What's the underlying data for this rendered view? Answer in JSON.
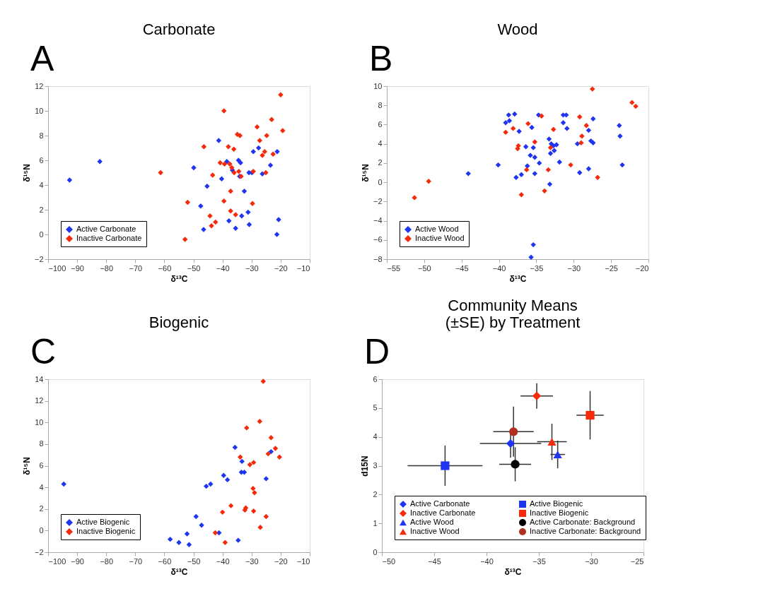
{
  "chart_data": [
    {
      "type": "scatter",
      "title": "Carbonate",
      "xlabel": "δ¹³C",
      "ylabel": "δ¹⁵N",
      "annotations": [
        "A"
      ],
      "marker": "diamond",
      "legend": "bottom left",
      "grid": false,
      "xlim": [
        -100,
        -10
      ],
      "xticks": [
        -100,
        -90,
        -80,
        -70,
        -60,
        -50,
        -40,
        -30,
        -20,
        -10
      ],
      "ylim": [
        -2,
        12
      ],
      "yticks": [
        -2,
        0,
        2,
        4,
        6,
        8,
        10,
        12
      ],
      "series": [
        {
          "name": "Active Carbonate",
          "color": "#1f35f2",
          "x": [
            -92.6,
            -82.2,
            -49.9,
            -45.3,
            -47.5,
            -46.5,
            -41.3,
            -40.3,
            -38.5,
            -36.6,
            -37.8,
            -35.5,
            -34.5,
            -33.8,
            -34.1,
            -33.4,
            -32.5,
            -31.2,
            -30.8,
            -30.9,
            -29.9,
            -29.4,
            -27.6,
            -26.3,
            -23.5,
            -21.2,
            -20.7,
            -21.3
          ],
          "values": [
            4.4,
            5.9,
            5.4,
            3.9,
            2.3,
            0.4,
            7.6,
            4.5,
            5.9,
            5.2,
            1.1,
            0.5,
            6.0,
            5.8,
            4.7,
            1.5,
            3.5,
            1.8,
            0.8,
            5.0,
            5.0,
            6.7,
            7.0,
            4.9,
            5.6,
            6.7,
            1.2,
            0.0
          ]
        },
        {
          "name": "Inactive Carbonate",
          "color": "#f52a0a",
          "x": [
            -61.3,
            -52.9,
            -52.0,
            -46.4,
            -44.3,
            -43.8,
            -42.4,
            -43.4,
            -40.8,
            -39.3,
            -39.5,
            -39.5,
            -38.0,
            -37.5,
            -36.8,
            -37.2,
            -37.2,
            -36.1,
            -36.0,
            -35.5,
            -34.9,
            -34.0,
            -34.4,
            -33.6,
            -29.7,
            -29.4,
            -28.1,
            -27.2,
            -26.3,
            -25.5,
            -25.1,
            -24.8,
            -23.1,
            -22.6,
            -20.0,
            -19.3
          ],
          "values": [
            5.0,
            -0.4,
            2.6,
            7.1,
            1.5,
            0.7,
            1.0,
            4.8,
            5.8,
            5.7,
            10.0,
            2.7,
            7.1,
            5.7,
            5.4,
            3.5,
            1.9,
            6.9,
            5.0,
            1.6,
            8.1,
            8.0,
            5.1,
            4.7,
            2.5,
            5.1,
            8.7,
            7.6,
            6.4,
            6.7,
            5.0,
            8.0,
            9.3,
            6.5,
            11.3,
            8.4
          ]
        }
      ]
    },
    {
      "type": "scatter",
      "title": "Wood",
      "xlabel": "δ¹³C",
      "ylabel": "δ¹⁵N",
      "annotations": [
        "B"
      ],
      "marker": "diamond",
      "legend": "bottom left",
      "grid": false,
      "xlim": [
        -55,
        -20
      ],
      "xticks": [
        -55,
        -50,
        -45,
        -40,
        -35,
        -30,
        -25,
        -20
      ],
      "ylim": [
        -8,
        10
      ],
      "yticks": [
        -8,
        -6,
        -4,
        -2,
        0,
        2,
        4,
        6,
        8,
        10
      ],
      "series": [
        {
          "name": "Active Wood",
          "color": "#1f35f2",
          "x": [
            -44.1,
            -40.1,
            -39.1,
            -38.6,
            -38.7,
            -37.9,
            -37.3,
            -37.7,
            -37.0,
            -36.4,
            -35.6,
            -35.4,
            -35.8,
            -35.2,
            -36.2,
            -35.2,
            -34.6,
            -34.7,
            -35.4,
            -35.7,
            -33.3,
            -33.0,
            -32.7,
            -32.3,
            -32.6,
            -33.1,
            -33.2,
            -31.9,
            -31.4,
            -31.0,
            -31.4,
            -30.9,
            -29.5,
            -29.2,
            -28.0,
            -27.7,
            -27.4,
            -27.4,
            -28.0,
            -23.9,
            -23.8,
            -23.5
          ],
          "values": [
            0.9,
            1.8,
            6.2,
            6.4,
            7.0,
            7.1,
            5.3,
            0.5,
            0.8,
            3.7,
            5.7,
            3.6,
            2.8,
            2.6,
            1.7,
            0.9,
            2.0,
            7.0,
            -6.5,
            -7.8,
            4.5,
            4.0,
            3.8,
            3.9,
            3.3,
            3.0,
            -0.2,
            2.1,
            7.0,
            7.0,
            6.2,
            5.6,
            4.0,
            1.0,
            5.4,
            4.3,
            4.1,
            6.6,
            1.4,
            5.9,
            4.8,
            1.8
          ]
        },
        {
          "name": "Inactive Wood",
          "color": "#f52a0a",
          "x": [
            -51.3,
            -49.4,
            -39.1,
            -38.1,
            -37.4,
            -37.5,
            -37.0,
            -36.1,
            -36.3,
            -35.2,
            -34.3,
            -33.9,
            -33.4,
            -33.1,
            -32.7,
            -30.4,
            -29.2,
            -29.0,
            -28.9,
            -28.3,
            -27.5,
            -26.8,
            -22.2,
            -21.7
          ],
          "values": [
            -1.6,
            0.1,
            5.2,
            5.6,
            3.8,
            3.5,
            -1.3,
            6.1,
            1.3,
            4.2,
            6.9,
            -0.9,
            1.3,
            3.6,
            5.5,
            1.8,
            6.8,
            4.1,
            4.8,
            5.9,
            9.7,
            0.5,
            8.3,
            7.9
          ]
        }
      ]
    },
    {
      "type": "scatter",
      "title": "Biogenic",
      "xlabel": "δ¹³C",
      "ylabel": "δ¹⁵N",
      "annotations": [
        "C"
      ],
      "marker": "diamond",
      "legend": "bottom left",
      "grid": false,
      "xlim": [
        -100,
        -10
      ],
      "xticks": [
        -100,
        -90,
        -80,
        -70,
        -60,
        -50,
        -40,
        -30,
        -20,
        -10
      ],
      "ylim": [
        -2,
        14
      ],
      "yticks": [
        -2,
        0,
        2,
        4,
        6,
        8,
        10,
        12,
        14
      ],
      "series": [
        {
          "name": "Active Biogenic",
          "color": "#1f35f2",
          "x": [
            -94.6,
            -58.0,
            -55.0,
            -52.2,
            -51.5,
            -49.1,
            -47.2,
            -45.6,
            -44.1,
            -41.2,
            -39.6,
            -38.3,
            -35.7,
            -34.6,
            -33.3,
            -33.5,
            -32.5,
            -25.0,
            -23.3
          ],
          "values": [
            4.3,
            -0.8,
            -1.1,
            -0.3,
            -1.3,
            1.3,
            0.5,
            4.1,
            4.3,
            -0.2,
            5.1,
            4.7,
            7.7,
            -0.9,
            6.4,
            5.4,
            5.4,
            4.8,
            7.3
          ]
        },
        {
          "name": "Inactive Biogenic",
          "color": "#f52a0a",
          "x": [
            -42.5,
            -40.0,
            -39.1,
            -37.1,
            -33.9,
            -31.7,
            -32.3,
            -32.0,
            -30.6,
            -29.3,
            -29.5,
            -29.0,
            -29.3,
            -27.2,
            -26.0,
            -27.0,
            -25.0,
            -24.3,
            -23.3,
            -21.8,
            -20.4
          ],
          "values": [
            -0.2,
            1.7,
            -1.1,
            2.3,
            6.8,
            9.5,
            1.9,
            2.1,
            6.1,
            6.3,
            3.9,
            3.5,
            1.8,
            10.1,
            13.8,
            0.3,
            1.3,
            7.1,
            8.6,
            7.6,
            6.8
          ]
        }
      ]
    },
    {
      "type": "scatter",
      "title": "Community Means (±SE) by Treatment",
      "xlabel": "δ¹³C",
      "ylabel": "d15N",
      "annotations": [
        "D"
      ],
      "legend": "bottom left",
      "grid": false,
      "xlim": [
        -50,
        -25
      ],
      "xticks": [
        -50,
        -45,
        -40,
        -35,
        -30,
        -25
      ],
      "ylim": [
        0,
        6
      ],
      "yticks": [
        0,
        1,
        2,
        3,
        4,
        5,
        6
      ],
      "series": [
        {
          "name": "Active Carbonate",
          "color": "#1f35f2",
          "marker": "diamond",
          "x": [
            -37.7
          ],
          "values": [
            3.77
          ],
          "errors": [
            0.49
          ],
          "xerrors": [
            2.93
          ]
        },
        {
          "name": "Inactive Carbonate",
          "color": "#f52a0a",
          "marker": "diamond",
          "x": [
            -35.2
          ],
          "values": [
            5.42
          ],
          "errors": [
            0.44
          ],
          "xerrors": [
            1.55
          ]
        },
        {
          "name": "Active Wood",
          "color": "#1f35f2",
          "marker": "triangle",
          "x": [
            -33.2
          ],
          "values": [
            3.39
          ],
          "errors": [
            0.48
          ],
          "xerrors": [
            0.69
          ]
        },
        {
          "name": "Inactive Wood",
          "color": "#f52a0a",
          "marker": "triangle",
          "x": [
            -33.75
          ],
          "values": [
            3.83
          ],
          "errors": [
            0.63
          ],
          "xerrors": [
            1.41
          ]
        },
        {
          "name": "Active Biogenic",
          "color": "#1f35f2",
          "marker": "square",
          "x": [
            -43.96
          ],
          "values": [
            3.0
          ],
          "errors": [
            0.7
          ],
          "xerrors": [
            3.58
          ]
        },
        {
          "name": "Inactive Biogenic",
          "color": "#f52a0a",
          "marker": "square",
          "x": [
            -30.1
          ],
          "values": [
            4.75
          ],
          "errors": [
            0.84
          ],
          "xerrors": [
            1.3
          ]
        },
        {
          "name": "Active Carbonate: Background",
          "color": "#000000",
          "marker": "circle",
          "x": [
            -37.26
          ],
          "values": [
            3.05
          ],
          "errors": [
            0.59
          ],
          "xerrors": [
            1.52
          ]
        },
        {
          "name": "Inactive Carbonate: Background",
          "color": "#b03020",
          "marker": "circle",
          "x": [
            -37.42
          ],
          "values": [
            4.18
          ],
          "errors": [
            0.87
          ],
          "xerrors": [
            1.93
          ]
        }
      ]
    }
  ]
}
